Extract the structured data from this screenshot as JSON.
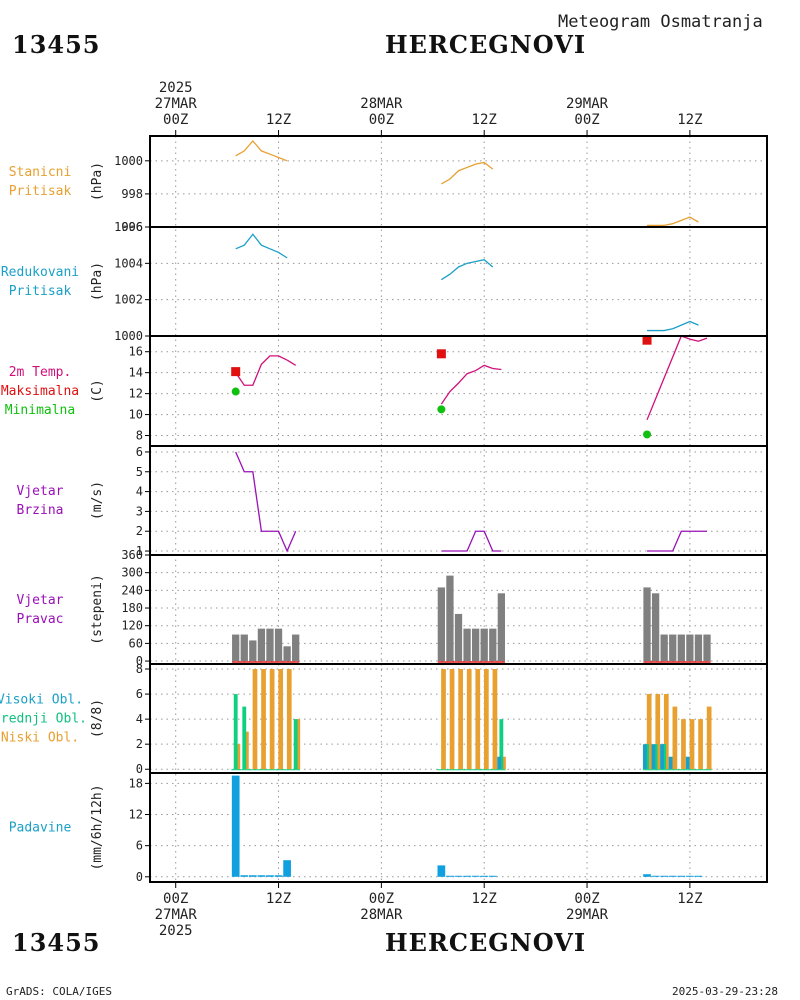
{
  "header": {
    "station_id": "13455",
    "station_name": "HERCEGNOVI",
    "subtitle": "Meteogram Osmatranja"
  },
  "footer": {
    "left": "GrADS: COLA/IGES",
    "right": "2025-03-29-23:28"
  },
  "colors": {
    "pressure": "#e8a030",
    "pressure_line": "#e8a030",
    "reduced": "#1aa0c8",
    "tmax": "#e01010",
    "tline": "#d0107a",
    "tmin": "#10c010",
    "wind": "#9a10b8",
    "dirbar": "#808080",
    "dirred": "#e02020",
    "cloud_high": "#1aa0c8",
    "cloud_mid": "#10d080",
    "cloud_low": "#e8a030",
    "precip": "#10a0e0"
  },
  "chart_data": [
    {
      "id": "pressure",
      "type": "line",
      "labels": [
        {
          "text": "Stanicni",
          "color": "#e8a030"
        },
        {
          "text": "Pritisak",
          "color": "#e8a030"
        }
      ],
      "ylabel": "(hPa)",
      "ylim": [
        996,
        1001.5
      ],
      "yticks": [
        996,
        998,
        1000
      ],
      "ytick_labels": [
        "996",
        "998",
        "1000"
      ],
      "series": [
        {
          "x": [
            7,
            8,
            9,
            10,
            11,
            12,
            13
          ],
          "y": [
            1000.3,
            1000.6,
            1001.2,
            1000.6,
            1000.4,
            1000.2,
            1000.0
          ]
        },
        {
          "x": [
            31,
            32,
            33,
            34,
            35,
            36,
            37
          ],
          "y": [
            998.6,
            998.9,
            999.4,
            999.6,
            999.8,
            999.9,
            999.5
          ]
        },
        {
          "x": [
            55,
            56,
            57,
            58,
            59,
            60,
            61
          ],
          "y": [
            996.1,
            996.1,
            996.1,
            996.2,
            996.4,
            996.6,
            996.3
          ]
        }
      ]
    },
    {
      "id": "reduced",
      "type": "line",
      "labels": [
        {
          "text": "Redukovani",
          "color": "#1aa0c8"
        },
        {
          "text": "Pritisak",
          "color": "#1aa0c8"
        }
      ],
      "ylabel": "(hPa)",
      "ylim": [
        1000,
        1006
      ],
      "yticks": [
        1000,
        1002,
        1004,
        1006
      ],
      "ytick_labels": [
        "1000",
        "1002",
        "1004",
        "1006"
      ],
      "series": [
        {
          "x": [
            7,
            8,
            9,
            10,
            11,
            12,
            13
          ],
          "y": [
            1004.8,
            1005.0,
            1005.6,
            1005.0,
            1004.8,
            1004.6,
            1004.3
          ]
        },
        {
          "x": [
            31,
            32,
            33,
            34,
            35,
            36,
            37
          ],
          "y": [
            1003.1,
            1003.4,
            1003.8,
            1004.0,
            1004.1,
            1004.2,
            1003.8
          ]
        },
        {
          "x": [
            55,
            56,
            57,
            58,
            59,
            60,
            61
          ],
          "y": [
            1000.3,
            1000.3,
            1000.3,
            1000.4,
            1000.6,
            1000.8,
            1000.6
          ]
        }
      ]
    },
    {
      "id": "temperature",
      "type": "line",
      "labels": [
        {
          "text": "2m Temp.",
          "color": "#d0107a"
        },
        {
          "text": "Maksimalna",
          "color": "#e01010"
        },
        {
          "text": "Minimalna",
          "color": "#10c010"
        }
      ],
      "ylabel": "(C)",
      "ylim": [
        7,
        17.5
      ],
      "yticks": [
        8,
        10,
        12,
        14,
        16
      ],
      "ytick_labels": [
        "8",
        "10",
        "12",
        "14",
        "16"
      ],
      "series": [
        {
          "x": [
            7,
            8,
            9,
            10,
            11,
            12,
            13
          ],
          "y": [
            14.0,
            12.8,
            12.8,
            14.8,
            15.6,
            15.6,
            15.2
          ]
        },
        {
          "x": [
            13,
            14
          ],
          "y": [
            15.2,
            14.7
          ]
        },
        {
          "x": [
            31,
            32,
            33,
            34,
            35,
            36,
            37
          ],
          "y": [
            11.0,
            12.2,
            13.0,
            13.9,
            14.2,
            14.7,
            14.4
          ]
        },
        {
          "x": [
            37,
            38
          ],
          "y": [
            14.4,
            14.3
          ]
        },
        {
          "x": [
            55,
            56,
            57,
            58,
            59,
            60,
            61,
            62
          ],
          "y": [
            9.5,
            11.5,
            13.5,
            15.5,
            17.5,
            17.2,
            17.0,
            17.3
          ]
        }
      ],
      "max_points": {
        "x": [
          7,
          31,
          55
        ],
        "y": [
          14.1,
          15.8,
          17.1
        ]
      },
      "min_points": {
        "x": [
          7,
          31,
          55
        ],
        "y": [
          12.2,
          10.5,
          8.1
        ]
      }
    },
    {
      "id": "wind_speed",
      "type": "line",
      "labels": [
        {
          "text": "Vjetar",
          "color": "#9a10b8"
        },
        {
          "text": "Brzina",
          "color": "#9a10b8"
        }
      ],
      "ylabel": "(m/s)",
      "ylim": [
        0.8,
        6.3
      ],
      "yticks": [
        1,
        2,
        3,
        4,
        5,
        6
      ],
      "ytick_labels": [
        "1",
        "2",
        "3",
        "4",
        "5",
        "6"
      ],
      "series": [
        {
          "x": [
            7,
            8,
            9,
            10,
            11,
            12,
            13,
            14
          ],
          "y": [
            6,
            5,
            5,
            2,
            2,
            2,
            1,
            2
          ]
        },
        {
          "x": [
            31,
            32,
            33,
            34,
            35,
            36,
            37,
            38
          ],
          "y": [
            1,
            1,
            1,
            1,
            2,
            2,
            1,
            1
          ]
        },
        {
          "x": [
            55,
            56,
            57,
            58,
            59,
            60,
            61,
            62
          ],
          "y": [
            1,
            1,
            1,
            1,
            2,
            2,
            2,
            2
          ]
        }
      ]
    },
    {
      "id": "wind_direction",
      "type": "bar",
      "labels": [
        {
          "text": "Vjetar",
          "color": "#9a10b8"
        },
        {
          "text": "Pravac",
          "color": "#9a10b8"
        }
      ],
      "ylabel": "(stepeni)",
      "ylim": [
        -10,
        360
      ],
      "yticks": [
        0,
        60,
        120,
        180,
        240,
        300,
        360
      ],
      "ytick_labels": [
        "0",
        "60",
        "120",
        "180",
        "240",
        "300",
        "360"
      ],
      "bars": {
        "x": [
          7,
          8,
          9,
          10,
          11,
          12,
          13,
          14,
          31,
          32,
          33,
          34,
          35,
          36,
          37,
          38,
          55,
          56,
          57,
          58,
          59,
          60,
          61,
          62
        ],
        "y": [
          90,
          90,
          70,
          110,
          110,
          110,
          50,
          90,
          250,
          290,
          160,
          110,
          110,
          110,
          110,
          230,
          250,
          230,
          90,
          90,
          90,
          90,
          90,
          90
        ]
      }
    },
    {
      "id": "clouds",
      "type": "bar",
      "labels": [
        {
          "text": "Visoki Obl.",
          "color": "#1aa0c8"
        },
        {
          "text": "Srednji Obl.",
          "color": "#10c080"
        },
        {
          "text": "Niski Obl.",
          "color": "#e8a030"
        }
      ],
      "ylabel": "(8/8)",
      "ylim": [
        -0.3,
        8.4
      ],
      "yticks": [
        0,
        2,
        4,
        6,
        8
      ],
      "ytick_labels": [
        "0",
        "2",
        "4",
        "6",
        "8"
      ],
      "series": [
        {
          "name": "Niski Obl.",
          "x": [
            7,
            8,
            9,
            10,
            11,
            12,
            13,
            14,
            31,
            32,
            33,
            34,
            35,
            36,
            37,
            38,
            55,
            56,
            57,
            58,
            59,
            60,
            61,
            62
          ],
          "values": [
            2,
            3,
            8,
            8,
            8,
            8,
            8,
            4,
            8,
            8,
            8,
            8,
            8,
            8,
            8,
            1,
            6,
            6,
            6,
            5,
            4,
            4,
            4,
            5
          ]
        },
        {
          "name": "Srednji Obl.",
          "x": [
            7,
            8,
            9,
            10,
            11,
            12,
            13,
            14,
            31,
            32,
            33,
            34,
            35,
            36,
            37,
            38,
            55,
            56,
            57,
            58,
            59,
            60,
            61,
            62
          ],
          "values": [
            6,
            5,
            0,
            0,
            0,
            0,
            0,
            4,
            0,
            0,
            0,
            0,
            0,
            0,
            0,
            4,
            2,
            2,
            2,
            0,
            0,
            0,
            0,
            0
          ]
        },
        {
          "name": "Visoki Obl.",
          "x": [
            7,
            8,
            9,
            10,
            11,
            12,
            13,
            14,
            31,
            32,
            33,
            34,
            35,
            36,
            37,
            38,
            55,
            56,
            57,
            58,
            59,
            60,
            61,
            62
          ],
          "values": [
            0,
            0,
            0,
            0,
            0,
            0,
            0,
            0,
            0,
            0,
            0,
            0,
            0,
            0,
            0,
            1,
            2,
            2,
            2,
            1,
            0,
            1,
            0,
            0
          ]
        }
      ]
    },
    {
      "id": "precip",
      "type": "bar",
      "labels": [
        {
          "text": "Padavine",
          "color": "#1aa0c8"
        }
      ],
      "ylabel": "(mm/6h/12h)",
      "ylim": [
        -1,
        20
      ],
      "yticks": [
        0,
        6,
        12,
        18
      ],
      "ytick_labels": [
        "0",
        "6",
        "12",
        "18"
      ],
      "bars": [
        {
          "x": 7,
          "y": 19.5,
          "w": 1
        },
        {
          "x": 8,
          "y": 0.3,
          "w": 1
        },
        {
          "x": 9,
          "y": 0.3,
          "w": 1
        },
        {
          "x": 10,
          "y": 0.3,
          "w": 1
        },
        {
          "x": 11,
          "y": 0.3,
          "w": 1
        },
        {
          "x": 12,
          "y": 0.3,
          "w": 1
        },
        {
          "x": 13,
          "y": 3.2,
          "w": 1
        },
        {
          "x": 31,
          "y": 2.2,
          "w": 1
        },
        {
          "x": 32,
          "y": 0.2,
          "w": 1
        },
        {
          "x": 33,
          "y": 0.2,
          "w": 1
        },
        {
          "x": 34,
          "y": 0.2,
          "w": 1
        },
        {
          "x": 35,
          "y": 0.2,
          "w": 1
        },
        {
          "x": 36,
          "y": 0.2,
          "w": 1
        },
        {
          "x": 37,
          "y": 0.2,
          "w": 1
        },
        {
          "x": 55,
          "y": 0.5,
          "w": 1
        },
        {
          "x": 56,
          "y": 0.2,
          "w": 1
        },
        {
          "x": 57,
          "y": 0.2,
          "w": 1
        },
        {
          "x": 58,
          "y": 0.2,
          "w": 1
        },
        {
          "x": 59,
          "y": 0.2,
          "w": 1
        },
        {
          "x": 60,
          "y": 0.2,
          "w": 1
        },
        {
          "x": 61,
          "y": 0.2,
          "w": 1
        }
      ]
    }
  ],
  "x_axis": {
    "xlim": [
      -3,
      69
    ],
    "major_ticks": [
      0,
      12,
      24,
      36,
      48,
      60
    ],
    "top_labels": [
      {
        "x": 0,
        "lines": [
          "2025",
          "27MAR",
          "00Z"
        ]
      },
      {
        "x": 12,
        "lines": [
          "",
          "",
          "12Z"
        ]
      },
      {
        "x": 24,
        "lines": [
          "",
          "28MAR",
          "00Z"
        ]
      },
      {
        "x": 36,
        "lines": [
          "",
          "",
          "12Z"
        ]
      },
      {
        "x": 48,
        "lines": [
          "",
          "29MAR",
          "00Z"
        ]
      },
      {
        "x": 60,
        "lines": [
          "",
          "",
          "12Z"
        ]
      }
    ],
    "bottom_labels": [
      {
        "x": 0,
        "lines": [
          "00Z",
          "27MAR",
          "2025"
        ]
      },
      {
        "x": 12,
        "lines": [
          "12Z",
          "",
          ""
        ]
      },
      {
        "x": 24,
        "lines": [
          "00Z",
          "28MAR",
          ""
        ]
      },
      {
        "x": 36,
        "lines": [
          "12Z",
          "",
          ""
        ]
      },
      {
        "x": 48,
        "lines": [
          "00Z",
          "29MAR",
          ""
        ]
      },
      {
        "x": 60,
        "lines": [
          "12Z",
          "",
          ""
        ]
      }
    ]
  }
}
